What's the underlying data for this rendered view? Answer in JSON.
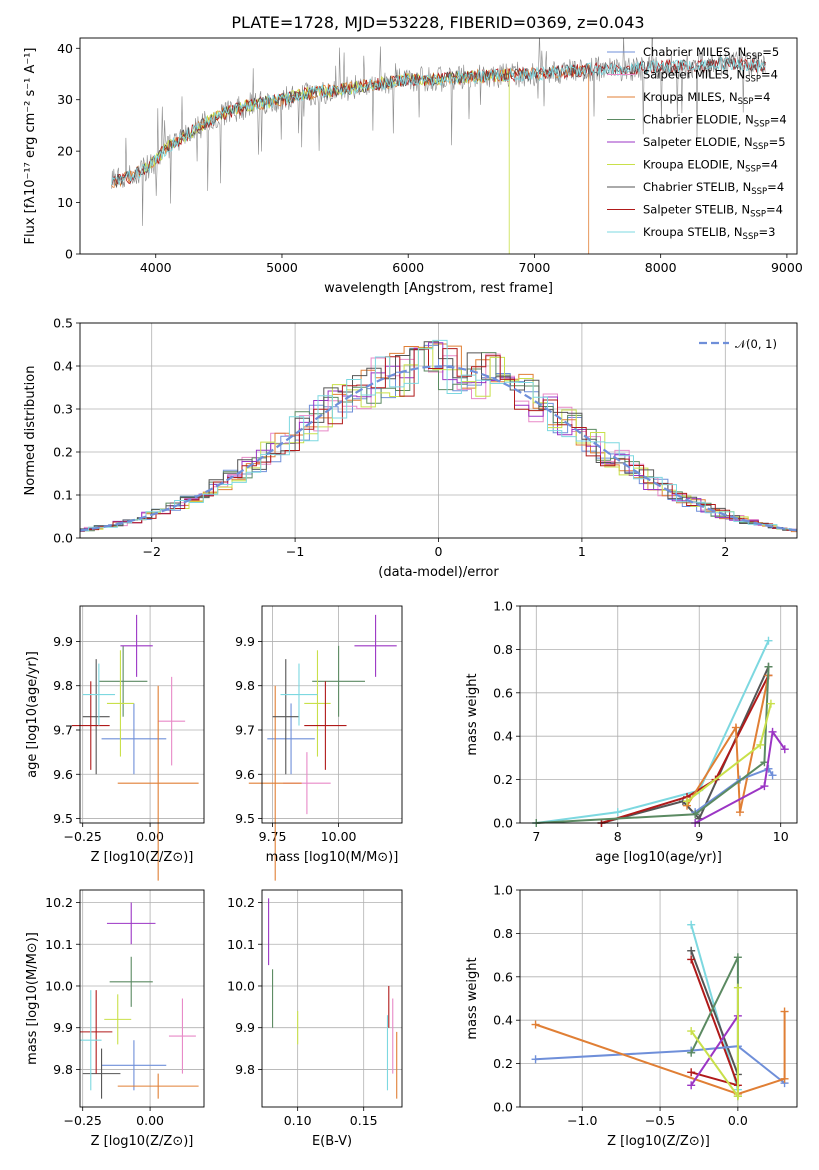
{
  "figure": {
    "title": "PLATE=1728, MJD=53228, FIBERID=0369, z=0.043"
  },
  "model_colors": {
    "Chabrier MILES": "#6f8fd9",
    "Salpeter MILES": "#e889c7",
    "Kroupa MILES": "#e07f35",
    "Chabrier ELODIE": "#5b8a62",
    "Salpeter ELODIE": "#9b35c4",
    "Kroupa ELODIE": "#c9e04a",
    "Chabrier STELIB": "#555555",
    "Salpeter STELIB": "#b01a1a",
    "Kroupa STELIB": "#7dd8e0"
  },
  "chart_data": [
    {
      "id": "spectrum",
      "type": "line",
      "xlabel": "wavelength [Angstrom, rest frame]",
      "ylabel": "Flux [fλ10⁻¹⁷ erg cm⁻² s⁻¹ A⁻¹]",
      "xlim": [
        3400,
        9080
      ],
      "ylim": [
        0,
        42
      ],
      "xticks": [
        4000,
        5000,
        6000,
        7000,
        8000,
        9000
      ],
      "yticks": [
        0,
        10,
        20,
        30,
        40
      ],
      "grid": false,
      "legend_position": "top-right",
      "series": [
        {
          "name": "Chabrier MILES",
          "nssp": "5"
        },
        {
          "name": "Salpeter MILES",
          "nssp": "4"
        },
        {
          "name": "Kroupa MILES",
          "nssp": "4"
        },
        {
          "name": "Chabrier ELODIE",
          "nssp": "4"
        },
        {
          "name": "Salpeter ELODIE",
          "nssp": "5"
        },
        {
          "name": "Kroupa ELODIE",
          "nssp": "4"
        },
        {
          "name": "Chabrier STELIB",
          "nssp": "4"
        },
        {
          "name": "Salpeter STELIB",
          "nssp": "4"
        },
        {
          "name": "Kroupa STELIB",
          "nssp": "3"
        }
      ],
      "continuum_points": [
        [
          3650,
          14
        ],
        [
          3800,
          15
        ],
        [
          3950,
          17
        ],
        [
          4100,
          21
        ],
        [
          4300,
          24
        ],
        [
          4500,
          27
        ],
        [
          4750,
          29
        ],
        [
          5000,
          30
        ],
        [
          5250,
          31.5
        ],
        [
          5500,
          32
        ],
        [
          5750,
          33
        ],
        [
          6000,
          34
        ],
        [
          6250,
          34
        ],
        [
          6500,
          34.5
        ],
        [
          6750,
          34.8
        ],
        [
          7000,
          35
        ],
        [
          7250,
          35.5
        ],
        [
          7500,
          36
        ],
        [
          7750,
          36
        ],
        [
          8000,
          36.5
        ],
        [
          8250,
          36.5
        ],
        [
          8500,
          37
        ],
        [
          8830,
          36.5
        ]
      ],
      "model_ranges": {
        "Chabrier MILES": [
          3650,
          7430
        ],
        "Salpeter MILES": [
          3650,
          7430
        ],
        "Kroupa MILES": [
          3650,
          7430
        ],
        "Kroupa ELODIE": [
          3900,
          6800
        ],
        "Kroupa STELIB": [
          3650,
          8830
        ],
        "Chabrier STELIB": [
          3650,
          8830
        ],
        "Salpeter STELIB": [
          3650,
          8830
        ]
      }
    },
    {
      "id": "residuals",
      "type": "line",
      "xlabel": "(data-model)/error",
      "ylabel": "Normed distribution",
      "xlim": [
        -2.5,
        2.5
      ],
      "ylim": [
        0,
        0.5
      ],
      "xticks": [
        -2,
        -1,
        0,
        1,
        2
      ],
      "yticks": [
        0.0,
        0.1,
        0.2,
        0.3,
        0.4,
        0.5
      ],
      "grid": true,
      "legend_position": "top-right",
      "legend_label": "𝒩(0, 1)",
      "normal_color": "#6f8fd9"
    },
    {
      "id": "age_vs_Z",
      "type": "scatter",
      "xlabel": "Z [log10(Z/Z⊙)]",
      "ylabel": "age  [log10(age/yr)]",
      "xlim": [
        -0.26,
        0.2
      ],
      "ylim": [
        9.49,
        9.98
      ],
      "xticks": [
        -0.25,
        0.0
      ],
      "yticks": [
        9.5,
        9.6,
        9.7,
        9.8,
        9.9
      ],
      "grid": true,
      "points": [
        {
          "model": "Chabrier MILES",
          "x": -0.06,
          "xerr": 0.12,
          "y": 9.68,
          "yerr": 0.08
        },
        {
          "model": "Salpeter MILES",
          "x": 0.08,
          "xerr": 0.05,
          "y": 9.72,
          "yerr": 0.1
        },
        {
          "model": "Kroupa MILES",
          "x": 0.03,
          "xerr": 0.15,
          "y": 9.58,
          "yerr": 0.22
        },
        {
          "model": "Chabrier ELODIE",
          "x": -0.1,
          "xerr": 0.09,
          "y": 9.81,
          "yerr": 0.08
        },
        {
          "model": "Salpeter ELODIE",
          "x": -0.05,
          "xerr": 0.06,
          "y": 9.89,
          "yerr": 0.07
        },
        {
          "model": "Kroupa ELODIE",
          "x": -0.11,
          "xerr": 0.05,
          "y": 9.76,
          "yerr": 0.12
        },
        {
          "model": "Chabrier STELIB",
          "x": -0.2,
          "xerr": 0.05,
          "y": 9.73,
          "yerr": 0.13
        },
        {
          "model": "Salpeter STELIB",
          "x": -0.22,
          "xerr": 0.07,
          "y": 9.71,
          "yerr": 0.1
        },
        {
          "model": "Kroupa STELIB",
          "x": -0.19,
          "xerr": 0.06,
          "y": 9.78,
          "yerr": 0.07
        }
      ]
    },
    {
      "id": "age_vs_mass",
      "type": "scatter",
      "xlabel": "mass [log10(M/M⊙)]",
      "ylabel": "",
      "xlim": [
        9.71,
        10.24
      ],
      "ylim": [
        9.49,
        9.98
      ],
      "xticks": [
        9.75,
        10.0
      ],
      "yticks": [
        9.5,
        9.6,
        9.7,
        9.8,
        9.9
      ],
      "grid": true,
      "points": [
        {
          "model": "Chabrier MILES",
          "x": 9.82,
          "xerr": 0.09,
          "y": 9.68,
          "yerr": 0.08
        },
        {
          "model": "Salpeter MILES",
          "x": 9.88,
          "xerr": 0.09,
          "y": 9.58,
          "yerr": 0.07
        },
        {
          "model": "Kroupa MILES",
          "x": 9.76,
          "xerr": 0.1,
          "y": 9.58,
          "yerr": 0.22
        },
        {
          "model": "Chabrier ELODIE",
          "x": 10.0,
          "xerr": 0.1,
          "y": 9.81,
          "yerr": 0.08
        },
        {
          "model": "Salpeter ELODIE",
          "x": 10.14,
          "xerr": 0.08,
          "y": 9.89,
          "yerr": 0.07
        },
        {
          "model": "Kroupa ELODIE",
          "x": 9.92,
          "xerr": 0.05,
          "y": 9.76,
          "yerr": 0.12
        },
        {
          "model": "Chabrier STELIB",
          "x": 9.8,
          "xerr": 0.05,
          "y": 9.73,
          "yerr": 0.13
        },
        {
          "model": "Salpeter STELIB",
          "x": 9.95,
          "xerr": 0.08,
          "y": 9.71,
          "yerr": 0.1
        },
        {
          "model": "Kroupa STELIB",
          "x": 9.85,
          "xerr": 0.07,
          "y": 9.78,
          "yerr": 0.07
        }
      ]
    },
    {
      "id": "mw_vs_age",
      "type": "line",
      "xlabel": "age  [log10(age/yr)]",
      "ylabel": "mass weight",
      "xlim": [
        6.8,
        10.2
      ],
      "ylim": [
        0,
        1.0
      ],
      "xticks": [
        7,
        8,
        9,
        10
      ],
      "yticks": [
        0.0,
        0.2,
        0.4,
        0.6,
        0.8,
        1.0
      ],
      "grid": true,
      "series": [
        {
          "model": "Kroupa STELIB",
          "x": [
            7.0,
            8.0,
            9.0,
            9.85
          ],
          "y": [
            0.0,
            0.05,
            0.15,
            0.84
          ]
        },
        {
          "model": "Chabrier STELIB",
          "x": [
            7.8,
            8.8,
            9.0,
            9.85
          ],
          "y": [
            0.0,
            0.1,
            0.02,
            0.72
          ]
        },
        {
          "model": "Salpeter STELIB",
          "x": [
            7.8,
            8.85,
            9.2,
            9.85
          ],
          "y": [
            0.0,
            0.12,
            0.2,
            0.68
          ]
        },
        {
          "model": "Kroupa MILES",
          "x": [
            8.85,
            9.45,
            9.5,
            9.85
          ],
          "y": [
            0.08,
            0.44,
            0.05,
            0.68
          ]
        },
        {
          "model": "Chabrier MILES",
          "x": [
            8.95,
            9.5,
            9.85,
            9.9
          ],
          "y": [
            0.05,
            0.2,
            0.25,
            0.22
          ]
        },
        {
          "model": "Chabrier ELODIE",
          "x": [
            7.0,
            8.95,
            9.8,
            9.85
          ],
          "y": [
            0.0,
            0.04,
            0.28,
            0.72
          ]
        },
        {
          "model": "Salpeter ELODIE",
          "x": [
            8.95,
            9.8,
            9.9,
            10.05
          ],
          "y": [
            0.0,
            0.17,
            0.42,
            0.34
          ]
        },
        {
          "model": "Kroupa ELODIE",
          "x": [
            8.85,
            9.75,
            9.88
          ],
          "y": [
            0.1,
            0.36,
            0.55
          ]
        }
      ]
    },
    {
      "id": "mass_vs_Z",
      "type": "scatter",
      "xlabel": "Z [log10(Z/Z⊙)]",
      "ylabel": "mass [log10(M/M⊙)]",
      "xlim": [
        -0.26,
        0.2
      ],
      "ylim": [
        9.71,
        10.23
      ],
      "xticks": [
        -0.25,
        0.0
      ],
      "yticks": [
        9.8,
        9.9,
        10.0,
        10.1,
        10.2
      ],
      "grid": true,
      "points": [
        {
          "model": "Chabrier MILES",
          "x": -0.06,
          "xerr": 0.12,
          "y": 9.81,
          "yerr": 0.06
        },
        {
          "model": "Salpeter MILES",
          "x": 0.12,
          "xerr": 0.05,
          "y": 9.88,
          "yerr": 0.09
        },
        {
          "model": "Kroupa MILES",
          "x": 0.03,
          "xerr": 0.15,
          "y": 9.76,
          "yerr": 0.03
        },
        {
          "model": "Chabrier ELODIE",
          "x": -0.07,
          "xerr": 0.08,
          "y": 10.01,
          "yerr": 0.06
        },
        {
          "model": "Salpeter ELODIE",
          "x": -0.07,
          "xerr": 0.09,
          "y": 10.15,
          "yerr": 0.05
        },
        {
          "model": "Kroupa ELODIE",
          "x": -0.12,
          "xerr": 0.05,
          "y": 9.92,
          "yerr": 0.06
        },
        {
          "model": "Chabrier STELIB",
          "x": -0.18,
          "xerr": 0.07,
          "y": 9.79,
          "yerr": 0.06
        },
        {
          "model": "Salpeter STELIB",
          "x": -0.2,
          "xerr": 0.06,
          "y": 9.89,
          "yerr": 0.1
        },
        {
          "model": "Kroupa STELIB",
          "x": -0.22,
          "xerr": 0.04,
          "y": 9.87,
          "yerr": 0.12
        }
      ]
    },
    {
      "id": "mass_vs_EBV",
      "type": "scatter",
      "xlabel": "E(B-V)",
      "ylabel": "",
      "xlim": [
        0.073,
        0.179
      ],
      "ylim": [
        9.71,
        10.23
      ],
      "xticks": [
        0.1,
        0.15
      ],
      "yticks": [
        9.8,
        9.9,
        10.0,
        10.1,
        10.2
      ],
      "grid": true,
      "points": [
        {
          "model": "Salpeter ELODIE",
          "x": 0.078,
          "y": 10.13,
          "yerr": 0.08
        },
        {
          "model": "Chabrier ELODIE",
          "x": 0.081,
          "y": 9.97,
          "yerr": 0.07
        },
        {
          "model": "Kroupa ELODIE",
          "x": 0.1,
          "y": 9.9,
          "yerr": 0.04
        },
        {
          "model": "Kroupa STELIB",
          "x": 0.168,
          "y": 9.84,
          "yerr": 0.09
        },
        {
          "model": "Salpeter STELIB",
          "x": 0.169,
          "y": 9.95,
          "yerr": 0.05
        },
        {
          "model": "Salpeter MILES",
          "x": 0.172,
          "y": 9.88,
          "yerr": 0.09
        },
        {
          "model": "Kroupa MILES",
          "x": 0.175,
          "y": 9.81,
          "yerr": 0.08
        }
      ]
    },
    {
      "id": "mw_vs_Z",
      "type": "line",
      "xlabel": "Z [log10(Z/Z⊙)]",
      "ylabel": "mass weight",
      "xlim": [
        -1.4,
        0.38
      ],
      "ylim": [
        0,
        1.0
      ],
      "xticks": [
        -1.0,
        -0.5,
        0.0
      ],
      "yticks": [
        0.0,
        0.2,
        0.4,
        0.6,
        0.8,
        1.0
      ],
      "grid": true,
      "series": [
        {
          "model": "Kroupa STELIB",
          "x": [
            -0.3,
            0.0
          ],
          "y": [
            0.84,
            0.08
          ]
        },
        {
          "model": "Chabrier STELIB",
          "x": [
            -0.3,
            0.0
          ],
          "y": [
            0.72,
            0.15
          ]
        },
        {
          "model": "Salpeter STELIB",
          "x": [
            -0.3,
            0.0,
            -0.3
          ],
          "y": [
            0.68,
            0.1,
            0.16
          ]
        },
        {
          "model": "Chabrier MILES",
          "x": [
            -1.3,
            -0.3,
            0.0,
            0.3
          ],
          "y": [
            0.22,
            0.26,
            0.28,
            0.11
          ]
        },
        {
          "model": "Kroupa MILES",
          "x": [
            -1.3,
            0.0,
            0.3,
            0.3
          ],
          "y": [
            0.38,
            0.06,
            0.13,
            0.44
          ]
        },
        {
          "model": "Chabrier ELODIE",
          "x": [
            -0.3,
            0.0,
            0.0
          ],
          "y": [
            0.25,
            0.69,
            0.05
          ]
        },
        {
          "model": "Salpeter ELODIE",
          "x": [
            -0.3,
            0.0
          ],
          "y": [
            0.1,
            0.42
          ]
        },
        {
          "model": "Kroupa ELODIE",
          "x": [
            -0.3,
            0.0,
            0.0
          ],
          "y": [
            0.35,
            0.05,
            0.55
          ]
        }
      ]
    }
  ]
}
